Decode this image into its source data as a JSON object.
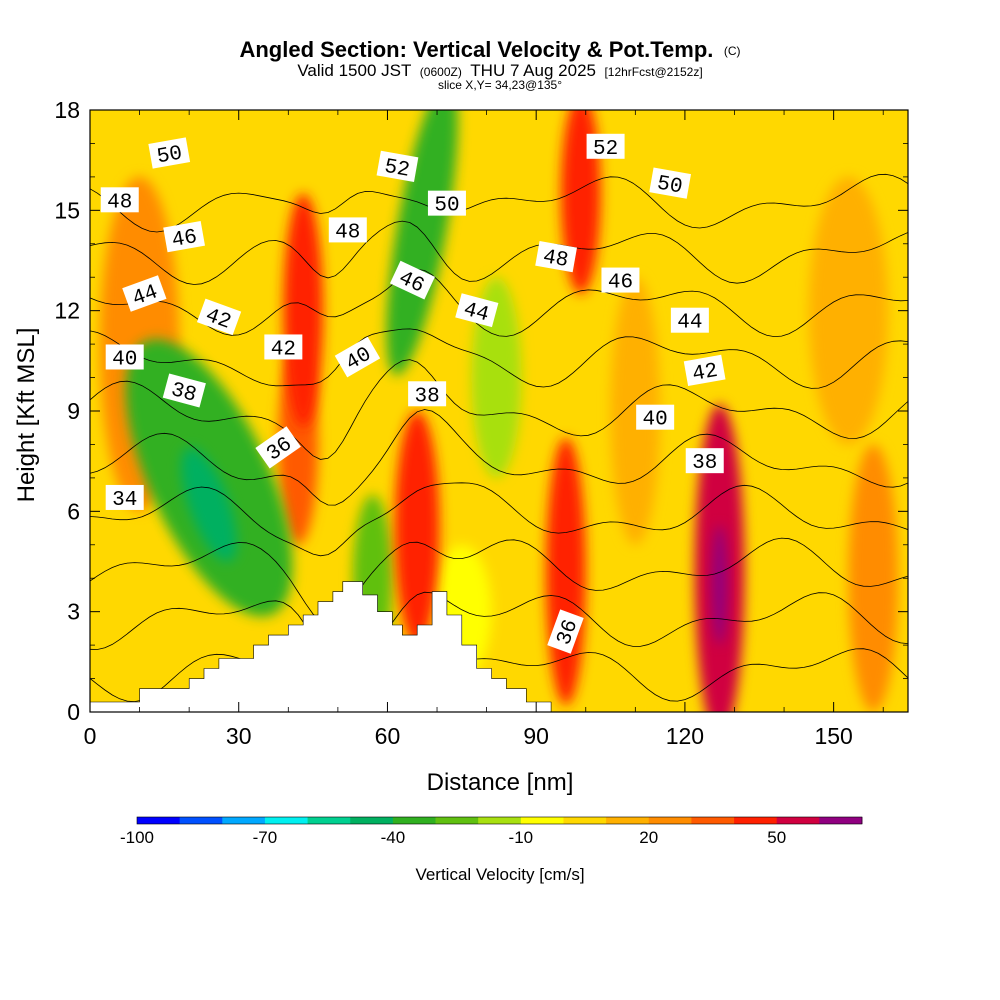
{
  "chart_data": {
    "type": "contour",
    "title": "Angled Section: Vertical Velocity & Pot.Temp.",
    "title_unit": "(C)",
    "subtitle_parts": {
      "valid": "Valid 1500 JST",
      "utc": "(0600Z)",
      "date": "THU 7 Aug 2025",
      "fcst": "[12hrFcst@2152z]"
    },
    "slice_label": "slice X,Y= 34,23@135°",
    "xlabel": "Distance [nm]",
    "ylabel": "Height [Kft MSL]",
    "xlim": [
      0,
      165
    ],
    "ylim": [
      0,
      18
    ],
    "x_ticks": [
      0,
      30,
      60,
      90,
      120,
      150
    ],
    "y_ticks": [
      0,
      3,
      6,
      9,
      12,
      15,
      18
    ],
    "colorbar": {
      "title": "Vertical Velocity [cm/s]",
      "levels": [
        -100,
        -90,
        -80,
        -70,
        -60,
        -50,
        -40,
        -30,
        -20,
        -10,
        0,
        10,
        20,
        30,
        40,
        50,
        60,
        70
      ],
      "tick_labels": [
        -100,
        -70,
        -40,
        -10,
        20,
        50
      ],
      "colors": [
        "#0000ff",
        "#0050ff",
        "#00a8ff",
        "#00f0f0",
        "#00d090",
        "#00b060",
        "#30b020",
        "#60c010",
        "#a8e010",
        "#ffff00",
        "#ffd800",
        "#ffb000",
        "#ff8c00",
        "#ff5a00",
        "#ff2000",
        "#d00040",
        "#900080"
      ]
    },
    "terrain_nm_kft": [
      [
        0,
        0.3
      ],
      [
        10,
        0.3
      ],
      [
        10,
        0.7
      ],
      [
        20,
        0.7
      ],
      [
        20,
        1.0
      ],
      [
        23,
        1.0
      ],
      [
        23,
        1.3
      ],
      [
        26,
        1.3
      ],
      [
        26,
        1.6
      ],
      [
        33,
        1.6
      ],
      [
        33,
        2.0
      ],
      [
        36,
        2.0
      ],
      [
        36,
        2.3
      ],
      [
        40,
        2.3
      ],
      [
        40,
        2.6
      ],
      [
        43,
        2.6
      ],
      [
        43,
        2.9
      ],
      [
        46,
        2.9
      ],
      [
        46,
        3.3
      ],
      [
        49,
        3.3
      ],
      [
        49,
        3.6
      ],
      [
        51,
        3.6
      ],
      [
        51,
        3.9
      ],
      [
        55,
        3.9
      ],
      [
        55,
        3.5
      ],
      [
        58,
        3.5
      ],
      [
        58,
        3.0
      ],
      [
        61,
        3.0
      ],
      [
        61,
        2.6
      ],
      [
        63,
        2.6
      ],
      [
        63,
        2.3
      ],
      [
        66,
        2.3
      ],
      [
        66,
        2.6
      ],
      [
        69,
        2.6
      ],
      [
        69,
        3.6
      ],
      [
        72,
        3.6
      ],
      [
        72,
        2.9
      ],
      [
        75,
        2.9
      ],
      [
        75,
        2.0
      ],
      [
        78,
        2.0
      ],
      [
        78,
        1.3
      ],
      [
        81,
        1.3
      ],
      [
        81,
        1.0
      ],
      [
        84,
        1.0
      ],
      [
        84,
        0.7
      ],
      [
        88,
        0.7
      ],
      [
        88,
        0.3
      ],
      [
        93,
        0.3
      ],
      [
        93,
        0
      ],
      [
        0,
        0
      ]
    ],
    "w_features": [
      {
        "x": 24,
        "y": 7.0,
        "rx": 12,
        "ry": 4.5,
        "w": -35,
        "rot": -25
      },
      {
        "x": 24,
        "y": 6.2,
        "rx": 4,
        "ry": 1.8,
        "w": -50,
        "rot": -20
      },
      {
        "x": 67,
        "y": 14.5,
        "rx": 5,
        "ry": 4.5,
        "w": -35,
        "rot": 10
      },
      {
        "x": 57,
        "y": 4.0,
        "rx": 4,
        "ry": 2.5,
        "w": -25,
        "rot": 0
      },
      {
        "x": 43,
        "y": 12.0,
        "rx": 4,
        "ry": 3.5,
        "w": 40,
        "rot": 0
      },
      {
        "x": 42,
        "y": 8.0,
        "rx": 4,
        "ry": 3.0,
        "w": 30,
        "rot": 0
      },
      {
        "x": 66,
        "y": 5.5,
        "rx": 4.5,
        "ry": 3.5,
        "w": 45,
        "rot": 0
      },
      {
        "x": 96,
        "y": 4.2,
        "rx": 4,
        "ry": 4.0,
        "w": 45,
        "rot": 0
      },
      {
        "x": 99,
        "y": 15.5,
        "rx": 4,
        "ry": 3.0,
        "w": 40,
        "rot": 0
      },
      {
        "x": 127,
        "y": 4.2,
        "rx": 5,
        "ry": 5.0,
        "w": 55,
        "rot": 0
      },
      {
        "x": 127,
        "y": 3.8,
        "rx": 1.5,
        "ry": 1.8,
        "w": 70,
        "rot": 0
      },
      {
        "x": 82,
        "y": 10.0,
        "rx": 5,
        "ry": 3.0,
        "w": -15,
        "rot": 0
      },
      {
        "x": 10,
        "y": 11.0,
        "rx": 8,
        "ry": 5.0,
        "w": 20,
        "rot": 0
      },
      {
        "x": 158,
        "y": 4.0,
        "rx": 5,
        "ry": 4.0,
        "w": 20,
        "rot": 0
      },
      {
        "x": 153,
        "y": 12.0,
        "rx": 8,
        "ry": 4.0,
        "w": 15,
        "rot": 0
      },
      {
        "x": 110,
        "y": 9.0,
        "rx": 5,
        "ry": 4.0,
        "w": 15,
        "rot": 0
      },
      {
        "x": 75,
        "y": 3.0,
        "rx": 6,
        "ry": 2.0,
        "w": -10,
        "rot": 0
      }
    ],
    "theta_contours": [
      34,
      36,
      38,
      40,
      42,
      44,
      46,
      48,
      50,
      52
    ],
    "contour_labels": [
      {
        "value": "34",
        "x": 7,
        "y": 6.4,
        "rot": 0
      },
      {
        "value": "36",
        "x": 38,
        "y": 7.9,
        "rot": -35
      },
      {
        "value": "36",
        "x": 96,
        "y": 2.4,
        "rot": -70
      },
      {
        "value": "38",
        "x": 19,
        "y": 9.6,
        "rot": 15
      },
      {
        "value": "38",
        "x": 68,
        "y": 9.5,
        "rot": 0
      },
      {
        "value": "38",
        "x": 124,
        "y": 7.5,
        "rot": 0
      },
      {
        "value": "40",
        "x": 7,
        "y": 10.6,
        "rot": 0
      },
      {
        "value": "40",
        "x": 54,
        "y": 10.6,
        "rot": -30
      },
      {
        "value": "40",
        "x": 114,
        "y": 8.8,
        "rot": 0
      },
      {
        "value": "42",
        "x": 26,
        "y": 11.8,
        "rot": 20
      },
      {
        "value": "42",
        "x": 39,
        "y": 10.9,
        "rot": 0
      },
      {
        "value": "42",
        "x": 124,
        "y": 10.2,
        "rot": -10
      },
      {
        "value": "44",
        "x": 11,
        "y": 12.5,
        "rot": -20
      },
      {
        "value": "44",
        "x": 78,
        "y": 12.0,
        "rot": 15
      },
      {
        "value": "44",
        "x": 121,
        "y": 11.7,
        "rot": 0
      },
      {
        "value": "46",
        "x": 19,
        "y": 14.2,
        "rot": -10
      },
      {
        "value": "46",
        "x": 65,
        "y": 12.9,
        "rot": 25
      },
      {
        "value": "46",
        "x": 107,
        "y": 12.9,
        "rot": 0
      },
      {
        "value": "48",
        "x": 6,
        "y": 15.3,
        "rot": 0
      },
      {
        "value": "48",
        "x": 52,
        "y": 14.4,
        "rot": 0
      },
      {
        "value": "48",
        "x": 94,
        "y": 13.6,
        "rot": 10
      },
      {
        "value": "50",
        "x": 16,
        "y": 16.7,
        "rot": -10
      },
      {
        "value": "50",
        "x": 72,
        "y": 15.2,
        "rot": 0
      },
      {
        "value": "50",
        "x": 117,
        "y": 15.8,
        "rot": 10
      },
      {
        "value": "52",
        "x": 62,
        "y": 16.3,
        "rot": 10
      },
      {
        "value": "52",
        "x": 104,
        "y": 16.9,
        "rot": 0
      }
    ]
  }
}
